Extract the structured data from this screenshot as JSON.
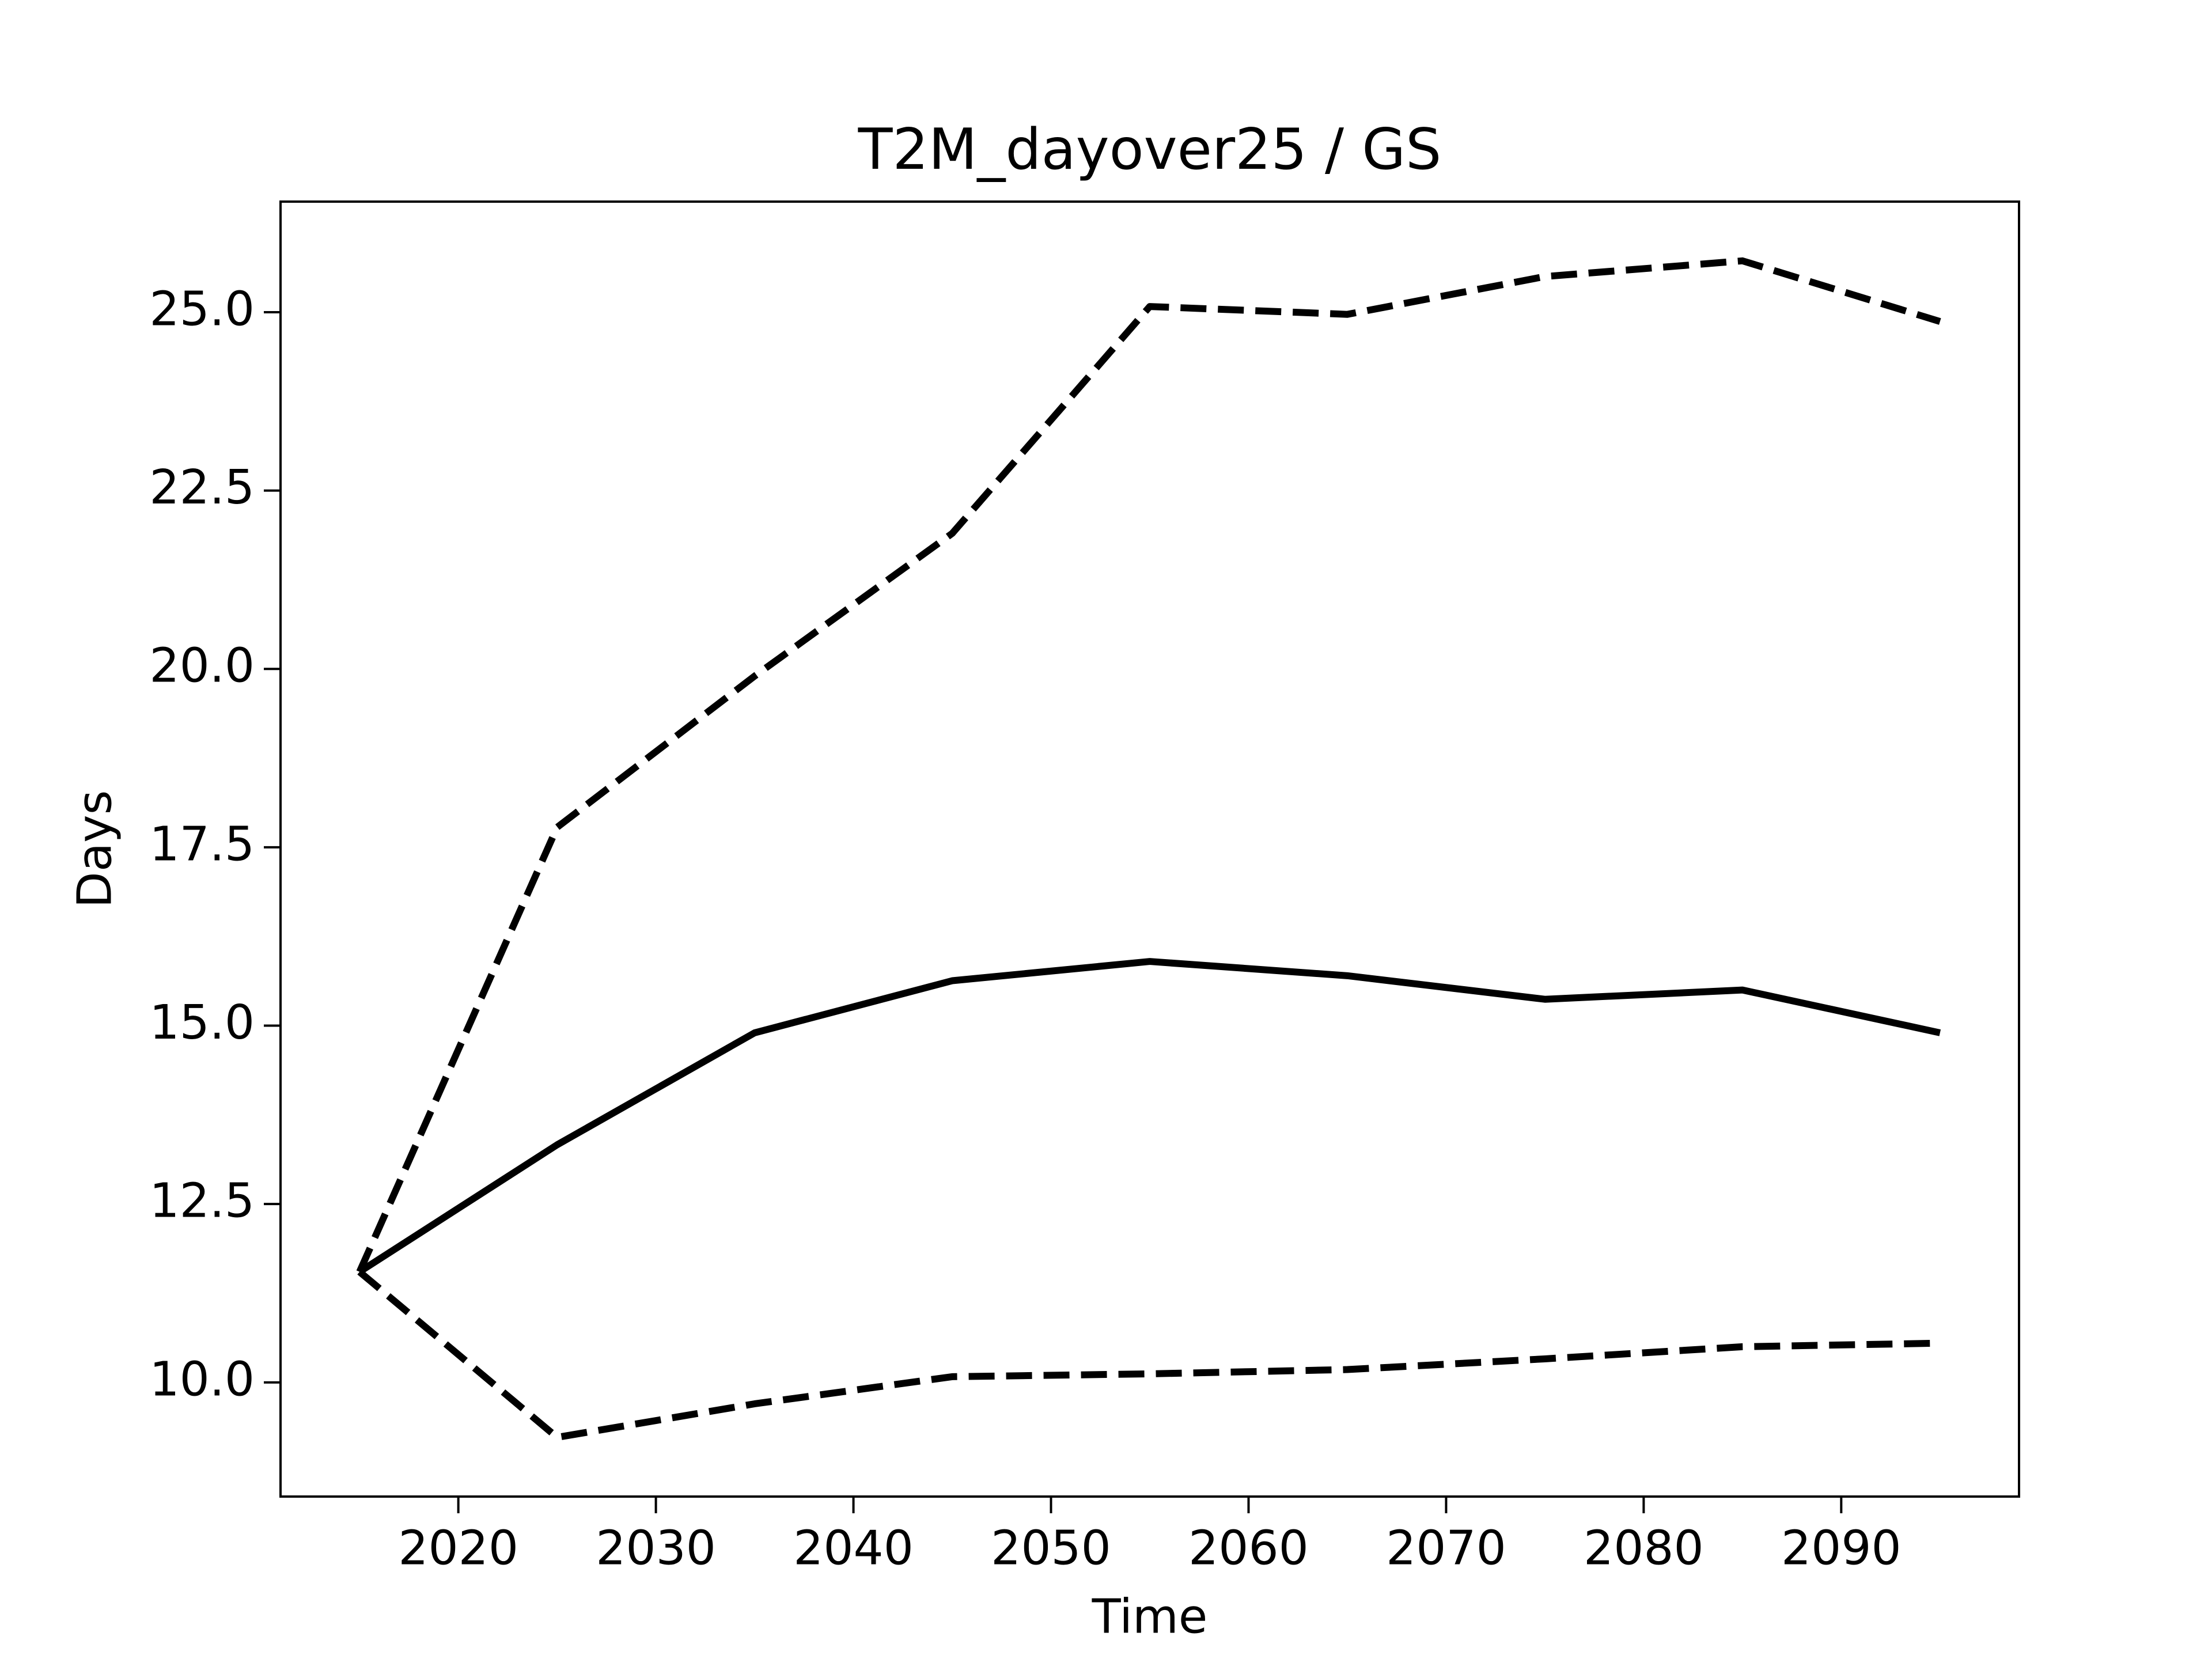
{
  "chart_data": {
    "type": "line",
    "title": "T2M_dayover25 / GS",
    "x_label": "Time",
    "y_label": "Days",
    "x": [
      2015,
      2025,
      2035,
      2045,
      2055,
      2065,
      2075,
      2085,
      2095
    ],
    "series": [
      {
        "color": "#000000",
        "dash": "solid",
        "values": [
          11.55,
          13.33,
          14.9,
          15.63,
          15.9,
          15.7,
          15.37,
          15.5,
          14.9
        ]
      },
      {
        "color": "#000000",
        "dash": "dashed",
        "values": [
          11.55,
          17.78,
          19.9,
          21.9,
          25.08,
          24.97,
          25.5,
          25.72,
          24.87
        ]
      },
      {
        "color": "#000000",
        "dash": "dashed",
        "values": [
          11.55,
          9.23,
          9.7,
          10.08,
          10.12,
          10.18,
          10.33,
          10.5,
          10.55
        ]
      }
    ],
    "xlim": [
      2011,
      2099
    ],
    "xticks": [
      2020,
      2030,
      2040,
      2050,
      2060,
      2070,
      2080,
      2090
    ],
    "ylim": [
      8.4,
      26.55
    ],
    "yticks": [
      {
        "value": 10,
        "label": "10.0"
      },
      {
        "value": 12.5,
        "label": "12.5"
      },
      {
        "value": 15,
        "label": "15.0"
      },
      {
        "value": 17.5,
        "label": "17.5"
      },
      {
        "value": 20,
        "label": "20.0"
      },
      {
        "value": 22.5,
        "label": "22.5"
      },
      {
        "value": 25,
        "label": "25.0"
      }
    ],
    "grid": false
  }
}
